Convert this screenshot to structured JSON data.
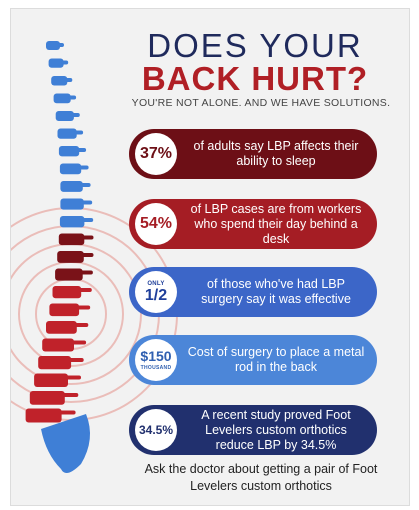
{
  "title_line1": "DOES YOUR",
  "title_line2": "BACK HURT?",
  "subtitle": "YOU'RE NOT ALONE. AND WE HAVE SOLUTIONS.",
  "stats": [
    {
      "badge": "37%",
      "text": "of adults say LBP affects their ability to sleep",
      "color": "#6d0f16"
    },
    {
      "badge": "54%",
      "text": "of LBP cases are from workers who spend their day behind a desk",
      "color": "#a51d24"
    },
    {
      "badge_small": "ONLY",
      "badge": "1/2",
      "text": "of those who've had LBP surgery say it was effective",
      "color": "#3c66c8"
    },
    {
      "badge": "$150",
      "badge_small": "THOUSAND",
      "text": "Cost of surgery to place a metal rod in the back",
      "color": "#4c86d8"
    },
    {
      "badge": "34.5%",
      "text": "A recent study proved Foot Levelers custom orthotics reduce LBP by 34.5%",
      "color": "#21306e"
    }
  ],
  "footer": "Ask the doctor about getting a pair of Foot Levelers custom orthotics",
  "colors": {
    "navy": "#1f2a5c",
    "red": "#b01f25",
    "spine_blue": "#3f7fd6",
    "spine_red": "#c0222a"
  }
}
